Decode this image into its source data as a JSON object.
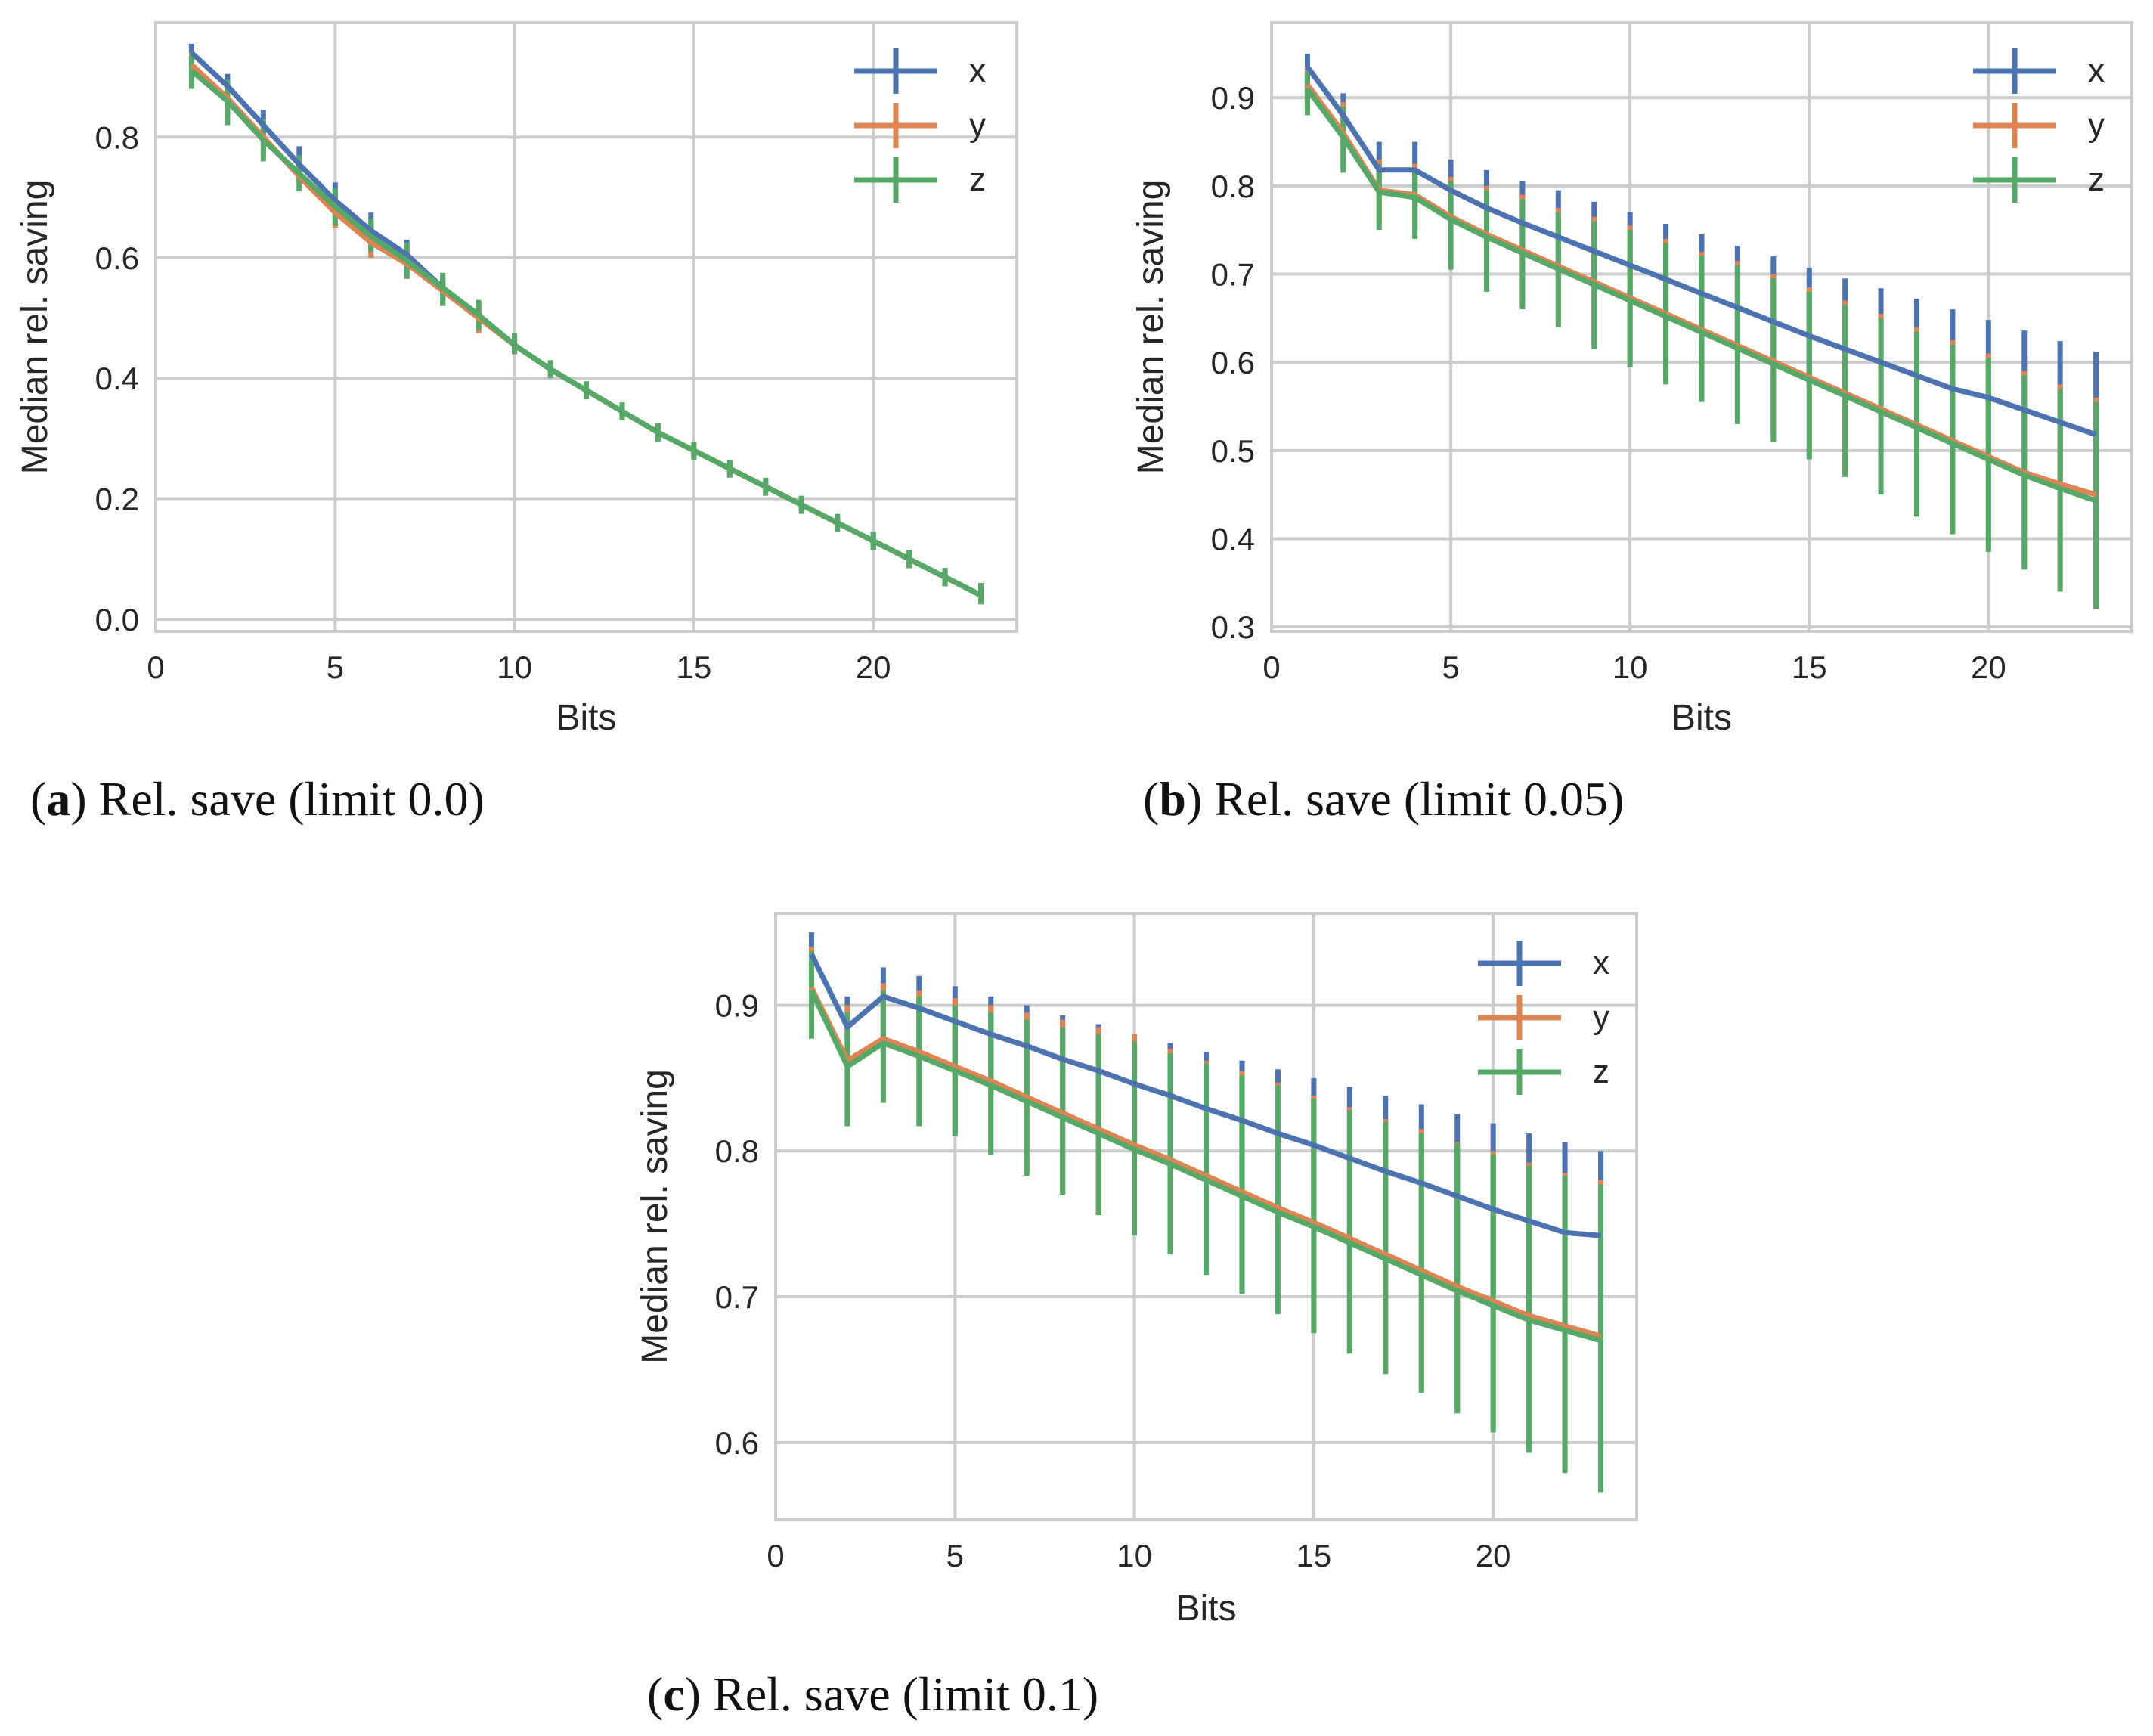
{
  "colors": {
    "x": "#4c72b0",
    "y": "#dd8452",
    "z": "#55a868",
    "grid": "#cccccc",
    "frame": "#cccccc"
  },
  "chart_data": [
    {
      "type": "line",
      "panel": "a",
      "caption_letter": "a",
      "caption_text": "Rel. save (limit 0.0)",
      "xlabel": "Bits",
      "ylabel": "Median rel. saving",
      "xlim": [
        0,
        24
      ],
      "ylim": [
        -0.02,
        0.99
      ],
      "xticks": [
        "0",
        "5",
        "10",
        "15",
        "20"
      ],
      "xtick_values": [
        0,
        5,
        10,
        15,
        20
      ],
      "yticks": [
        "0.0",
        "0.2",
        "0.4",
        "0.6",
        "0.8"
      ],
      "ytick_values": [
        0.0,
        0.2,
        0.4,
        0.6,
        0.8
      ],
      "legend": "top-right",
      "x": [
        1,
        2,
        3,
        4,
        5,
        6,
        7,
        8,
        9,
        10,
        11,
        12,
        13,
        14,
        15,
        16,
        17,
        18,
        19,
        20,
        21,
        22,
        23
      ],
      "series": [
        {
          "name": "x",
          "key": "x",
          "values": [
            0.94,
            0.885,
            0.82,
            0.755,
            0.695,
            0.645,
            0.605,
            0.55,
            0.505,
            0.455,
            0.415,
            0.38,
            0.345,
            0.31,
            0.28,
            0.25,
            0.22,
            0.19,
            0.16,
            0.13,
            0.1,
            0.07,
            0.04
          ],
          "lower": [
            0.92,
            0.86,
            0.79,
            0.725,
            0.665,
            0.615,
            0.58,
            0.525,
            0.48,
            0.44,
            0.405,
            0.37,
            0.335,
            0.3,
            0.27,
            0.24,
            0.21,
            0.18,
            0.15,
            0.115,
            0.085,
            0.055,
            0.025
          ],
          "upper": [
            0.955,
            0.905,
            0.845,
            0.785,
            0.725,
            0.675,
            0.63,
            0.57,
            0.525,
            0.47,
            0.425,
            0.39,
            0.355,
            0.32,
            0.29,
            0.26,
            0.23,
            0.2,
            0.17,
            0.145,
            0.115,
            0.085,
            0.06
          ]
        },
        {
          "name": "y",
          "key": "y",
          "values": [
            0.92,
            0.865,
            0.8,
            0.735,
            0.675,
            0.625,
            0.59,
            0.545,
            0.5,
            0.455,
            0.415,
            0.38,
            0.345,
            0.31,
            0.28,
            0.25,
            0.22,
            0.19,
            0.16,
            0.13,
            0.1,
            0.07,
            0.04
          ],
          "lower": [
            0.895,
            0.83,
            0.77,
            0.71,
            0.65,
            0.6,
            0.565,
            0.52,
            0.475,
            0.44,
            0.405,
            0.37,
            0.335,
            0.3,
            0.27,
            0.24,
            0.21,
            0.18,
            0.15,
            0.115,
            0.085,
            0.055,
            0.025
          ],
          "upper": [
            0.94,
            0.895,
            0.83,
            0.765,
            0.705,
            0.655,
            0.62,
            0.57,
            0.525,
            0.47,
            0.425,
            0.39,
            0.355,
            0.32,
            0.29,
            0.26,
            0.23,
            0.2,
            0.17,
            0.145,
            0.115,
            0.085,
            0.06
          ]
        },
        {
          "name": "z",
          "key": "z",
          "values": [
            0.91,
            0.86,
            0.795,
            0.74,
            0.685,
            0.635,
            0.595,
            0.55,
            0.505,
            0.455,
            0.415,
            0.38,
            0.345,
            0.31,
            0.28,
            0.25,
            0.22,
            0.19,
            0.16,
            0.13,
            0.1,
            0.07,
            0.04
          ],
          "lower": [
            0.88,
            0.82,
            0.76,
            0.71,
            0.655,
            0.61,
            0.565,
            0.52,
            0.48,
            0.44,
            0.4,
            0.365,
            0.33,
            0.295,
            0.265,
            0.235,
            0.205,
            0.175,
            0.145,
            0.115,
            0.085,
            0.055,
            0.025
          ],
          "upper": [
            0.935,
            0.895,
            0.83,
            0.77,
            0.715,
            0.665,
            0.625,
            0.575,
            0.53,
            0.475,
            0.43,
            0.395,
            0.36,
            0.325,
            0.295,
            0.265,
            0.235,
            0.205,
            0.175,
            0.145,
            0.115,
            0.085,
            0.06
          ]
        }
      ]
    },
    {
      "type": "line",
      "panel": "b",
      "caption_letter": "b",
      "caption_text": "Rel. save (limit 0.05)",
      "xlabel": "Bits",
      "ylabel": "Median rel. saving",
      "xlim": [
        0,
        24
      ],
      "ylim": [
        0.295,
        0.985
      ],
      "xticks": [
        "0",
        "5",
        "10",
        "15",
        "20"
      ],
      "xtick_values": [
        0,
        5,
        10,
        15,
        20
      ],
      "yticks": [
        "0.3",
        "0.4",
        "0.5",
        "0.6",
        "0.7",
        "0.8",
        "0.9"
      ],
      "ytick_values": [
        0.3,
        0.4,
        0.5,
        0.6,
        0.7,
        0.8,
        0.9
      ],
      "legend": "top-right",
      "x": [
        1,
        2,
        3,
        4,
        5,
        6,
        7,
        8,
        9,
        10,
        11,
        12,
        13,
        14,
        15,
        16,
        17,
        18,
        19,
        20,
        21,
        22,
        23
      ],
      "series": [
        {
          "name": "x",
          "key": "x",
          "values": [
            0.935,
            0.88,
            0.818,
            0.818,
            0.795,
            0.775,
            0.758,
            0.742,
            0.726,
            0.71,
            0.694,
            0.678,
            0.662,
            0.646,
            0.63,
            0.615,
            0.6,
            0.585,
            0.57,
            0.56,
            0.546,
            0.532,
            0.518
          ],
          "lower": [
            0.905,
            0.85,
            0.785,
            0.785,
            0.765,
            0.735,
            0.72,
            0.7,
            0.685,
            0.665,
            0.65,
            0.63,
            0.615,
            0.6,
            0.58,
            0.565,
            0.55,
            0.535,
            0.52,
            0.51,
            0.49,
            0.47,
            0.455
          ],
          "upper": [
            0.95,
            0.905,
            0.85,
            0.85,
            0.83,
            0.818,
            0.805,
            0.795,
            0.782,
            0.77,
            0.757,
            0.745,
            0.732,
            0.72,
            0.707,
            0.695,
            0.684,
            0.672,
            0.66,
            0.648,
            0.636,
            0.624,
            0.612
          ]
        },
        {
          "name": "y",
          "key": "y",
          "values": [
            0.915,
            0.86,
            0.795,
            0.79,
            0.765,
            0.745,
            0.727,
            0.709,
            0.691,
            0.673,
            0.655,
            0.637,
            0.619,
            0.601,
            0.583,
            0.565,
            0.547,
            0.529,
            0.511,
            0.493,
            0.475,
            0.462,
            0.45
          ],
          "lower": [
            0.885,
            0.82,
            0.755,
            0.745,
            0.71,
            0.685,
            0.665,
            0.645,
            0.62,
            0.6,
            0.58,
            0.56,
            0.535,
            0.515,
            0.495,
            0.475,
            0.455,
            0.43,
            0.41,
            0.39,
            0.37,
            0.345,
            0.325
          ],
          "upper": [
            0.935,
            0.895,
            0.83,
            0.825,
            0.81,
            0.8,
            0.79,
            0.775,
            0.765,
            0.755,
            0.74,
            0.725,
            0.715,
            0.7,
            0.685,
            0.67,
            0.655,
            0.64,
            0.625,
            0.61,
            0.59,
            0.575,
            0.56
          ]
        },
        {
          "name": "z",
          "key": "z",
          "values": [
            0.91,
            0.855,
            0.793,
            0.787,
            0.762,
            0.742,
            0.724,
            0.706,
            0.688,
            0.67,
            0.652,
            0.634,
            0.616,
            0.598,
            0.58,
            0.562,
            0.544,
            0.526,
            0.508,
            0.49,
            0.472,
            0.457,
            0.443
          ],
          "lower": [
            0.88,
            0.815,
            0.75,
            0.74,
            0.705,
            0.68,
            0.66,
            0.64,
            0.615,
            0.595,
            0.575,
            0.555,
            0.53,
            0.51,
            0.49,
            0.47,
            0.45,
            0.425,
            0.405,
            0.385,
            0.365,
            0.34,
            0.32
          ],
          "upper": [
            0.93,
            0.89,
            0.825,
            0.82,
            0.805,
            0.795,
            0.785,
            0.77,
            0.76,
            0.75,
            0.735,
            0.72,
            0.71,
            0.695,
            0.68,
            0.665,
            0.65,
            0.635,
            0.62,
            0.605,
            0.585,
            0.57,
            0.555
          ]
        }
      ]
    },
    {
      "type": "line",
      "panel": "c",
      "caption_letter": "c",
      "caption_text": "Rel. save (limit 0.1)",
      "xlabel": "Bits",
      "ylabel": "Median rel. saving",
      "xlim": [
        0,
        24
      ],
      "ylim": [
        0.547,
        0.963
      ],
      "xticks": [
        "0",
        "5",
        "10",
        "15",
        "20"
      ],
      "xtick_values": [
        0,
        5,
        10,
        15,
        20
      ],
      "yticks": [
        "0.6",
        "0.7",
        "0.8",
        "0.9"
      ],
      "ytick_values": [
        0.6,
        0.7,
        0.8,
        0.9
      ],
      "legend": "top-right",
      "x": [
        1,
        2,
        3,
        4,
        5,
        6,
        7,
        8,
        9,
        10,
        11,
        12,
        13,
        14,
        15,
        16,
        17,
        18,
        19,
        20,
        21,
        22,
        23
      ],
      "series": [
        {
          "name": "x",
          "key": "x",
          "values": [
            0.935,
            0.885,
            0.906,
            0.898,
            0.889,
            0.88,
            0.872,
            0.863,
            0.855,
            0.846,
            0.838,
            0.829,
            0.821,
            0.812,
            0.804,
            0.795,
            0.786,
            0.778,
            0.769,
            0.76,
            0.752,
            0.744,
            0.742
          ],
          "lower": [
            0.915,
            0.86,
            0.875,
            0.865,
            0.85,
            0.84,
            0.83,
            0.82,
            0.81,
            0.8,
            0.79,
            0.78,
            0.77,
            0.76,
            0.75,
            0.74,
            0.73,
            0.72,
            0.71,
            0.7,
            0.69,
            0.68,
            0.675
          ],
          "upper": [
            0.95,
            0.906,
            0.926,
            0.92,
            0.913,
            0.906,
            0.9,
            0.893,
            0.887,
            0.88,
            0.874,
            0.868,
            0.862,
            0.856,
            0.85,
            0.844,
            0.838,
            0.832,
            0.825,
            0.819,
            0.812,
            0.806,
            0.8
          ]
        },
        {
          "name": "y",
          "key": "y",
          "values": [
            0.912,
            0.862,
            0.877,
            0.868,
            0.858,
            0.848,
            0.837,
            0.826,
            0.815,
            0.804,
            0.794,
            0.783,
            0.772,
            0.761,
            0.751,
            0.74,
            0.729,
            0.718,
            0.707,
            0.697,
            0.687,
            0.68,
            0.673
          ],
          "lower": [
            0.88,
            0.82,
            0.836,
            0.82,
            0.812,
            0.798,
            0.785,
            0.771,
            0.757,
            0.743,
            0.73,
            0.716,
            0.703,
            0.689,
            0.676,
            0.662,
            0.648,
            0.635,
            0.621,
            0.608,
            0.594,
            0.58,
            0.567
          ],
          "upper": [
            0.94,
            0.9,
            0.915,
            0.91,
            0.905,
            0.9,
            0.895,
            0.89,
            0.885,
            0.88,
            0.87,
            0.862,
            0.855,
            0.847,
            0.838,
            0.83,
            0.822,
            0.815,
            0.806,
            0.8,
            0.792,
            0.785,
            0.78
          ]
        },
        {
          "name": "z",
          "key": "z",
          "values": [
            0.91,
            0.858,
            0.874,
            0.865,
            0.855,
            0.845,
            0.834,
            0.823,
            0.812,
            0.801,
            0.791,
            0.78,
            0.769,
            0.758,
            0.748,
            0.737,
            0.726,
            0.715,
            0.704,
            0.694,
            0.684,
            0.677,
            0.67
          ],
          "lower": [
            0.877,
            0.817,
            0.833,
            0.817,
            0.81,
            0.797,
            0.783,
            0.77,
            0.756,
            0.742,
            0.729,
            0.715,
            0.702,
            0.688,
            0.675,
            0.661,
            0.647,
            0.634,
            0.62,
            0.607,
            0.593,
            0.579,
            0.566
          ],
          "upper": [
            0.937,
            0.895,
            0.91,
            0.906,
            0.9,
            0.895,
            0.89,
            0.885,
            0.88,
            0.875,
            0.867,
            0.86,
            0.852,
            0.845,
            0.836,
            0.828,
            0.82,
            0.812,
            0.805,
            0.798,
            0.79,
            0.783,
            0.777
          ]
        }
      ]
    }
  ]
}
